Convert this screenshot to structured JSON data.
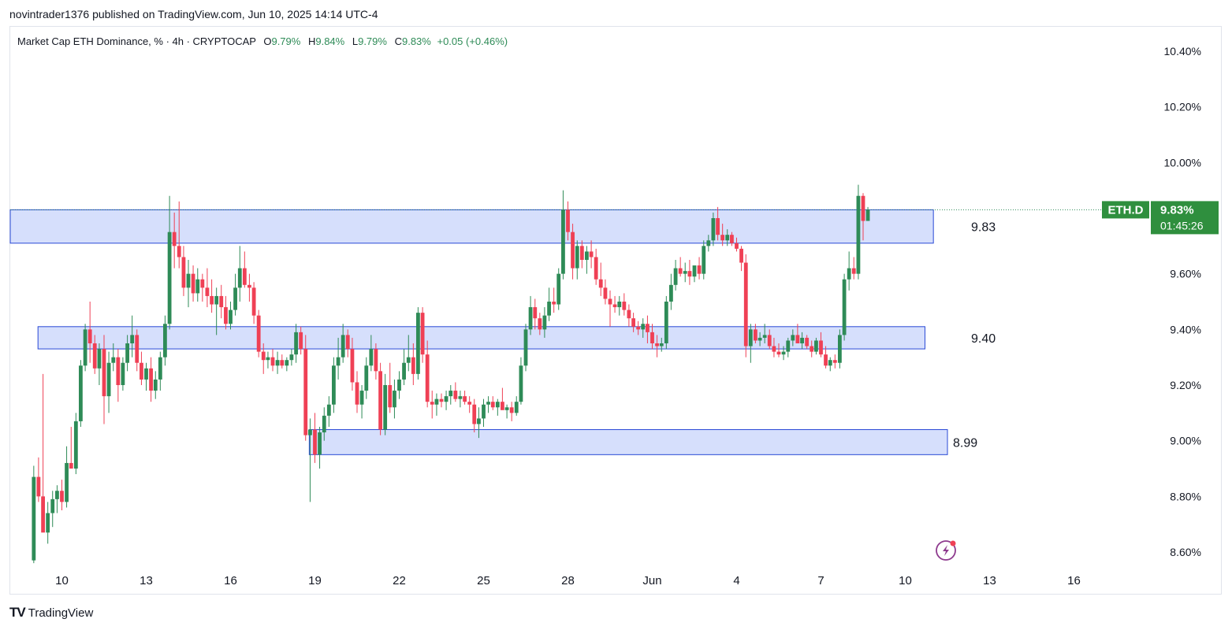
{
  "header": {
    "published": "novintrader1376 published on TradingView.com, Jun 10, 2025 14:14 UTC-4"
  },
  "legend": {
    "symbol": "Market Cap ETH Dominance, % · 4h · CRYPTOCAP",
    "o_label": "O",
    "o_value": "9.79%",
    "h_label": "H",
    "h_value": "9.84%",
    "l_label": "L",
    "l_value": "9.79%",
    "c_label": "C",
    "c_value": "9.83%",
    "change": "+0.05 (+0.46%)"
  },
  "colors": {
    "up": "#2e8b57",
    "down": "#ef4055",
    "zone_fill": "#d6dffc",
    "zone_border": "#2949d6",
    "badge": "#2f8f3e",
    "text": "#131722"
  },
  "price_tag": {
    "symbol": "ETH.D",
    "price": "9.83%",
    "countdown": "01:45:26"
  },
  "footer": {
    "logo": "TV",
    "brand": "TradingView"
  },
  "icons": {
    "replay": "lightning-bolt-icon"
  },
  "chart_data": {
    "type": "candlestick",
    "title": "Market Cap ETH Dominance, % · 4h · CRYPTOCAP",
    "interval": "4h",
    "y_axis": {
      "ticks": [
        "10.40%",
        "10.20%",
        "10.00%",
        "9.60%",
        "9.40%",
        "9.20%",
        "9.00%",
        "8.80%",
        "8.60%"
      ],
      "tick_values": [
        10.4,
        10.2,
        10.0,
        9.6,
        9.4,
        9.2,
        9.0,
        8.8,
        8.6
      ],
      "ylim": [
        8.55,
        10.45
      ]
    },
    "x_axis": {
      "ticks": [
        "10",
        "13",
        "16",
        "19",
        "22",
        "25",
        "28",
        "Jun",
        "4",
        "7",
        "10",
        "13",
        "16"
      ],
      "tick_days": [
        0,
        3,
        6,
        9,
        12,
        15,
        18,
        21,
        24,
        27,
        30,
        33,
        36
      ],
      "xlim_days": [
        -1.9,
        38.8
      ]
    },
    "zones": [
      {
        "label": "9.83",
        "low": 9.71,
        "high": 9.83,
        "start_day": -1.9,
        "end_day": 31.0
      },
      {
        "label": "9.40",
        "low": 9.33,
        "high": 9.41,
        "start_day": -0.85,
        "end_day": 30.7
      },
      {
        "label": "8.99",
        "low": 8.95,
        "high": 9.04,
        "start_day": 8.8,
        "end_day": 31.5
      }
    ],
    "last_price": 9.83,
    "candles": [
      [
        -1.0,
        8.57,
        8.91,
        8.56,
        8.87
      ],
      [
        -0.83,
        8.87,
        8.94,
        8.78,
        8.8
      ],
      [
        -0.67,
        8.8,
        9.24,
        8.68,
        8.67
      ],
      [
        -0.5,
        8.67,
        8.78,
        8.63,
        8.74
      ],
      [
        -0.33,
        8.74,
        8.82,
        8.69,
        8.79
      ],
      [
        -0.17,
        8.79,
        8.84,
        8.74,
        8.82
      ],
      [
        0.0,
        8.82,
        8.86,
        8.75,
        8.78
      ],
      [
        0.17,
        8.78,
        8.98,
        8.76,
        8.92
      ],
      [
        0.33,
        8.92,
        9.05,
        8.9,
        8.9
      ],
      [
        0.5,
        8.9,
        9.1,
        8.88,
        9.07
      ],
      [
        0.67,
        9.07,
        9.29,
        9.05,
        9.27
      ],
      [
        0.83,
        9.27,
        9.42,
        9.25,
        9.4
      ],
      [
        1.0,
        9.4,
        9.5,
        9.28,
        9.35
      ],
      [
        1.17,
        9.35,
        9.38,
        9.24,
        9.26
      ],
      [
        1.33,
        9.26,
        9.35,
        9.2,
        9.33
      ],
      [
        1.5,
        9.33,
        9.38,
        9.06,
        9.16
      ],
      [
        1.67,
        9.16,
        9.32,
        9.1,
        9.28
      ],
      [
        1.83,
        9.28,
        9.35,
        9.25,
        9.3
      ],
      [
        2.0,
        9.3,
        9.33,
        9.14,
        9.2
      ],
      [
        2.17,
        9.2,
        9.3,
        9.18,
        9.28
      ],
      [
        2.33,
        9.28,
        9.38,
        9.25,
        9.35
      ],
      [
        2.5,
        9.35,
        9.45,
        9.3,
        9.38
      ],
      [
        2.67,
        9.38,
        9.4,
        9.25,
        9.28
      ],
      [
        2.83,
        9.28,
        9.32,
        9.2,
        9.22
      ],
      [
        3.0,
        9.22,
        9.28,
        9.18,
        9.26
      ],
      [
        3.17,
        9.26,
        9.3,
        9.14,
        9.18
      ],
      [
        3.33,
        9.18,
        9.25,
        9.15,
        9.22
      ],
      [
        3.5,
        9.22,
        9.32,
        9.18,
        9.3
      ],
      [
        3.67,
        9.3,
        9.45,
        9.27,
        9.42
      ],
      [
        3.83,
        9.42,
        9.88,
        9.4,
        9.75
      ],
      [
        4.0,
        9.75,
        9.82,
        9.62,
        9.7
      ],
      [
        4.17,
        9.7,
        9.86,
        9.62,
        9.66
      ],
      [
        4.33,
        9.66,
        9.7,
        9.52,
        9.55
      ],
      [
        4.5,
        9.55,
        9.65,
        9.48,
        9.6
      ],
      [
        4.67,
        9.6,
        9.63,
        9.5,
        9.53
      ],
      [
        4.83,
        9.53,
        9.62,
        9.5,
        9.58
      ],
      [
        5.0,
        9.58,
        9.6,
        9.5,
        9.55
      ],
      [
        5.17,
        9.55,
        9.62,
        9.48,
        9.52
      ],
      [
        5.33,
        9.52,
        9.58,
        9.46,
        9.49
      ],
      [
        5.5,
        9.49,
        9.55,
        9.38,
        9.52
      ],
      [
        5.67,
        9.52,
        9.56,
        9.44,
        9.48
      ],
      [
        5.83,
        9.48,
        9.52,
        9.4,
        9.42
      ],
      [
        6.0,
        9.42,
        9.5,
        9.4,
        9.47
      ],
      [
        6.17,
        9.47,
        9.6,
        9.45,
        9.55
      ],
      [
        6.33,
        9.55,
        9.7,
        9.5,
        9.62
      ],
      [
        6.5,
        9.62,
        9.68,
        9.55,
        9.56
      ],
      [
        6.67,
        9.56,
        9.6,
        9.5,
        9.55
      ],
      [
        6.83,
        9.55,
        9.57,
        9.42,
        9.45
      ],
      [
        7.0,
        9.45,
        9.47,
        9.3,
        9.32
      ],
      [
        7.17,
        9.32,
        9.35,
        9.24,
        9.29
      ],
      [
        7.33,
        9.29,
        9.32,
        9.26,
        9.3
      ],
      [
        7.5,
        9.3,
        9.33,
        9.25,
        9.27
      ],
      [
        7.67,
        9.27,
        9.32,
        9.24,
        9.29
      ],
      [
        7.83,
        9.29,
        9.31,
        9.26,
        9.27
      ],
      [
        8.0,
        9.27,
        9.3,
        9.25,
        9.29
      ],
      [
        8.17,
        9.29,
        9.33,
        9.27,
        9.31
      ],
      [
        8.33,
        9.31,
        9.42,
        9.28,
        9.39
      ],
      [
        8.5,
        9.39,
        9.41,
        9.31,
        9.33
      ],
      [
        8.67,
        9.33,
        9.38,
        9.0,
        9.02
      ],
      [
        8.83,
        9.02,
        9.08,
        8.78,
        9.04
      ],
      [
        9.0,
        9.04,
        9.1,
        8.92,
        8.95
      ],
      [
        9.17,
        8.95,
        9.05,
        8.9,
        9.03
      ],
      [
        9.33,
        9.03,
        9.12,
        9.0,
        9.09
      ],
      [
        9.5,
        9.09,
        9.16,
        9.05,
        9.13
      ],
      [
        9.67,
        9.13,
        9.3,
        9.1,
        9.27
      ],
      [
        9.83,
        9.27,
        9.37,
        9.22,
        9.3
      ],
      [
        10.0,
        9.3,
        9.42,
        9.28,
        9.38
      ],
      [
        10.17,
        9.38,
        9.4,
        9.3,
        9.33
      ],
      [
        10.33,
        9.33,
        9.37,
        9.18,
        9.21
      ],
      [
        10.5,
        9.21,
        9.25,
        9.1,
        9.13
      ],
      [
        10.67,
        9.13,
        9.2,
        9.08,
        9.18
      ],
      [
        10.83,
        9.18,
        9.3,
        9.15,
        9.27
      ],
      [
        11.0,
        9.27,
        9.38,
        9.25,
        9.33
      ],
      [
        11.17,
        9.33,
        9.35,
        9.22,
        9.25
      ],
      [
        11.33,
        9.25,
        9.28,
        9.02,
        9.04
      ],
      [
        11.5,
        9.04,
        9.24,
        9.02,
        9.2
      ],
      [
        11.67,
        9.2,
        9.28,
        9.1,
        9.12
      ],
      [
        11.83,
        9.12,
        9.22,
        9.08,
        9.18
      ],
      [
        12.0,
        9.18,
        9.25,
        9.15,
        9.22
      ],
      [
        12.17,
        9.22,
        9.33,
        9.2,
        9.28
      ],
      [
        12.33,
        9.28,
        9.38,
        9.25,
        9.3
      ],
      [
        12.5,
        9.3,
        9.35,
        9.2,
        9.24
      ],
      [
        12.67,
        9.24,
        9.48,
        9.22,
        9.46
      ],
      [
        12.83,
        9.46,
        9.48,
        9.28,
        9.31
      ],
      [
        13.0,
        9.31,
        9.36,
        9.12,
        9.14
      ],
      [
        13.17,
        9.14,
        9.18,
        9.08,
        9.13
      ],
      [
        13.33,
        9.13,
        9.17,
        9.09,
        9.15
      ],
      [
        13.5,
        9.15,
        9.17,
        9.12,
        9.14
      ],
      [
        13.67,
        9.14,
        9.18,
        9.11,
        9.16
      ],
      [
        13.83,
        9.16,
        9.2,
        9.13,
        9.18
      ],
      [
        14.0,
        9.18,
        9.21,
        9.14,
        9.15
      ],
      [
        14.17,
        9.15,
        9.18,
        9.12,
        9.16
      ],
      [
        14.33,
        9.16,
        9.18,
        9.13,
        9.14
      ],
      [
        14.5,
        9.14,
        9.16,
        9.1,
        9.13
      ],
      [
        14.67,
        9.13,
        9.15,
        9.03,
        9.06
      ],
      [
        14.83,
        9.06,
        9.12,
        9.01,
        9.08
      ],
      [
        15.0,
        9.08,
        9.15,
        9.05,
        9.13
      ],
      [
        15.17,
        9.13,
        9.16,
        9.1,
        9.14
      ],
      [
        15.33,
        9.14,
        9.16,
        9.11,
        9.12
      ],
      [
        15.5,
        9.12,
        9.15,
        9.09,
        9.14
      ],
      [
        15.67,
        9.14,
        9.19,
        9.12,
        9.11
      ],
      [
        15.83,
        9.11,
        9.13,
        9.08,
        9.12
      ],
      [
        16.0,
        9.12,
        9.14,
        9.07,
        9.1
      ],
      [
        16.17,
        9.1,
        9.16,
        9.09,
        9.14
      ],
      [
        16.33,
        9.14,
        9.3,
        9.13,
        9.27
      ],
      [
        16.5,
        9.27,
        9.42,
        9.25,
        9.4
      ],
      [
        16.67,
        9.4,
        9.52,
        9.38,
        9.48
      ],
      [
        16.83,
        9.48,
        9.51,
        9.4,
        9.44
      ],
      [
        17.0,
        9.44,
        9.46,
        9.38,
        9.4
      ],
      [
        17.17,
        9.4,
        9.48,
        9.37,
        9.45
      ],
      [
        17.33,
        9.45,
        9.55,
        9.43,
        9.5
      ],
      [
        17.5,
        9.5,
        9.55,
        9.46,
        9.49
      ],
      [
        17.67,
        9.49,
        9.62,
        9.47,
        9.6
      ],
      [
        17.83,
        9.6,
        9.9,
        9.58,
        9.83
      ],
      [
        18.0,
        9.83,
        9.86,
        9.72,
        9.75
      ],
      [
        18.17,
        9.75,
        9.78,
        9.58,
        9.62
      ],
      [
        18.33,
        9.62,
        9.72,
        9.58,
        9.7
      ],
      [
        18.5,
        9.7,
        9.72,
        9.62,
        9.65
      ],
      [
        18.67,
        9.65,
        9.7,
        9.6,
        9.68
      ],
      [
        18.83,
        9.68,
        9.72,
        9.62,
        9.66
      ],
      [
        19.0,
        9.66,
        9.69,
        9.56,
        9.58
      ],
      [
        19.17,
        9.58,
        9.64,
        9.52,
        9.55
      ],
      [
        19.33,
        9.55,
        9.58,
        9.49,
        9.51
      ],
      [
        19.5,
        9.51,
        9.54,
        9.41,
        9.49
      ],
      [
        19.67,
        9.49,
        9.52,
        9.46,
        9.48
      ],
      [
        19.83,
        9.48,
        9.52,
        9.45,
        9.5
      ],
      [
        20.0,
        9.5,
        9.53,
        9.45,
        9.47
      ],
      [
        20.17,
        9.47,
        9.49,
        9.41,
        9.44
      ],
      [
        20.33,
        9.44,
        9.46,
        9.39,
        9.41
      ],
      [
        20.5,
        9.41,
        9.43,
        9.38,
        9.4
      ],
      [
        20.67,
        9.4,
        9.44,
        9.37,
        9.42
      ],
      [
        20.83,
        9.42,
        9.45,
        9.35,
        9.39
      ],
      [
        21.0,
        9.39,
        9.42,
        9.33,
        9.35
      ],
      [
        21.17,
        9.35,
        9.38,
        9.3,
        9.34
      ],
      [
        21.33,
        9.34,
        9.37,
        9.32,
        9.35
      ],
      [
        21.5,
        9.35,
        9.52,
        9.33,
        9.5
      ],
      [
        21.67,
        9.5,
        9.6,
        9.47,
        9.56
      ],
      [
        21.83,
        9.56,
        9.65,
        9.54,
        9.62
      ],
      [
        22.0,
        9.62,
        9.66,
        9.59,
        9.6
      ],
      [
        22.17,
        9.6,
        9.64,
        9.57,
        9.61
      ],
      [
        22.33,
        9.61,
        9.65,
        9.56,
        9.59
      ],
      [
        22.5,
        9.59,
        9.62,
        9.57,
        9.63
      ],
      [
        22.67,
        9.63,
        9.66,
        9.58,
        9.6
      ],
      [
        22.83,
        9.6,
        9.72,
        9.58,
        9.7
      ],
      [
        23.0,
        9.7,
        9.74,
        9.68,
        9.72
      ],
      [
        23.17,
        9.72,
        9.82,
        9.7,
        9.8
      ],
      [
        23.33,
        9.8,
        9.84,
        9.72,
        9.74
      ],
      [
        23.5,
        9.74,
        9.78,
        9.7,
        9.72
      ],
      [
        23.67,
        9.72,
        9.76,
        9.7,
        9.74
      ],
      [
        23.83,
        9.74,
        9.75,
        9.7,
        9.71
      ],
      [
        24.0,
        9.71,
        9.73,
        9.68,
        9.69
      ],
      [
        24.17,
        9.69,
        9.7,
        9.61,
        9.64
      ],
      [
        24.33,
        9.64,
        9.67,
        9.3,
        9.34
      ],
      [
        24.5,
        9.34,
        9.42,
        9.28,
        9.4
      ],
      [
        24.67,
        9.4,
        9.42,
        9.35,
        9.36
      ],
      [
        24.83,
        9.36,
        9.39,
        9.34,
        9.37
      ],
      [
        25.0,
        9.37,
        9.42,
        9.35,
        9.38
      ],
      [
        25.17,
        9.38,
        9.4,
        9.33,
        9.34
      ],
      [
        25.33,
        9.34,
        9.37,
        9.3,
        9.32
      ],
      [
        25.5,
        9.32,
        9.35,
        9.3,
        9.31
      ],
      [
        25.67,
        9.31,
        9.34,
        9.29,
        9.32
      ],
      [
        25.83,
        9.32,
        9.37,
        9.3,
        9.36
      ],
      [
        26.0,
        9.36,
        9.4,
        9.34,
        9.38
      ],
      [
        26.17,
        9.38,
        9.42,
        9.35,
        9.35
      ],
      [
        26.33,
        9.35,
        9.39,
        9.33,
        9.37
      ],
      [
        26.5,
        9.37,
        9.38,
        9.33,
        9.34
      ],
      [
        26.67,
        9.34,
        9.36,
        9.3,
        9.32
      ],
      [
        26.83,
        9.32,
        9.37,
        9.31,
        9.36
      ],
      [
        27.0,
        9.36,
        9.39,
        9.3,
        9.31
      ],
      [
        27.17,
        9.31,
        9.34,
        9.26,
        9.27
      ],
      [
        27.33,
        9.27,
        9.3,
        9.25,
        9.29
      ],
      [
        27.5,
        9.29,
        9.31,
        9.26,
        9.28
      ],
      [
        27.67,
        9.28,
        9.4,
        9.26,
        9.38
      ],
      [
        27.83,
        9.38,
        9.6,
        9.36,
        9.58
      ],
      [
        28.0,
        9.58,
        9.68,
        9.54,
        9.62
      ],
      [
        28.17,
        9.62,
        9.66,
        9.58,
        9.6
      ],
      [
        28.33,
        9.6,
        9.92,
        9.58,
        9.88
      ],
      [
        28.5,
        9.88,
        9.89,
        9.72,
        9.79
      ],
      [
        28.67,
        9.79,
        9.84,
        9.79,
        9.83
      ]
    ]
  }
}
